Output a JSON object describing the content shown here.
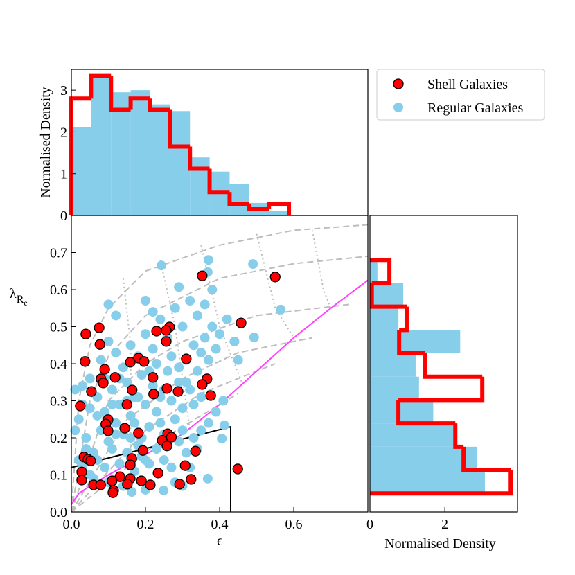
{
  "chart_data": [
    {
      "type": "scatter",
      "xlabel": "ϵ",
      "ylabel": "λ",
      "ylabel_sub": "R",
      "ylabel_subsub": "e",
      "xlim": [
        0,
        0.8
      ],
      "ylim": [
        0,
        0.8
      ],
      "xticks": [
        {
          "value": 0,
          "label": "0.0"
        },
        0.2,
        0.4,
        0.6
      ],
      "yticks": [
        {
          "value": 0,
          "label": "0.0"
        },
        0.1,
        0.2,
        0.3,
        0.4,
        0.5,
        0.6,
        0.7
      ],
      "legend": "upper right",
      "lines": [
        {
          "color": "#bdbdbd",
          "style": "dashed",
          "x": [
            0,
            0.02,
            0.05,
            0.1,
            0.2,
            0.4,
            0.6,
            0.8
          ],
          "values": [
            0,
            0.3,
            0.45,
            0.55,
            0.65,
            0.72,
            0.76,
            0.775
          ]
        },
        {
          "color": "#bdbdbd",
          "style": "dashed",
          "x": [
            0,
            0.05,
            0.1,
            0.2,
            0.4,
            0.6,
            0.8
          ],
          "values": [
            0,
            0.3,
            0.42,
            0.53,
            0.63,
            0.67,
            0.69
          ]
        },
        {
          "color": "#bdbdbd",
          "style": "dashed",
          "x": [
            0,
            0.1,
            0.2,
            0.3,
            0.5,
            0.75
          ],
          "values": [
            0,
            0.3,
            0.4,
            0.46,
            0.53,
            0.56
          ]
        },
        {
          "color": "#bdbdbd",
          "style": "dashed",
          "x": [
            0,
            0.15,
            0.3,
            0.45,
            0.65
          ],
          "values": [
            0,
            0.25,
            0.36,
            0.43,
            0.47
          ]
        },
        {
          "color": "#bdbdbd",
          "style": "dashed",
          "x": [
            0,
            0.2,
            0.35,
            0.55
          ],
          "values": [
            0,
            0.22,
            0.32,
            0.4
          ]
        },
        {
          "color": "#bdbdbd",
          "style": "dashed",
          "x": [
            0,
            0.25,
            0.45
          ],
          "values": [
            0,
            0.2,
            0.32
          ]
        },
        {
          "color": "#bdbdbd",
          "style": "dotted",
          "x": [
            0.14,
            0.16,
            0.16
          ],
          "values": [
            0.63,
            0.45,
            0.13
          ]
        },
        {
          "color": "#bdbdbd",
          "style": "dotted",
          "x": [
            0.24,
            0.28,
            0.32
          ],
          "values": [
            0.68,
            0.5,
            0.22
          ]
        },
        {
          "color": "#bdbdbd",
          "style": "dotted",
          "x": [
            0.35,
            0.4,
            0.46
          ],
          "values": [
            0.72,
            0.5,
            0.35
          ]
        },
        {
          "color": "#bdbdbd",
          "style": "dotted",
          "x": [
            0.5,
            0.55,
            0.6
          ],
          "values": [
            0.75,
            0.55,
            0.47
          ]
        },
        {
          "color": "#bdbdbd",
          "style": "dotted",
          "x": [
            0.65,
            0.68,
            0.7
          ],
          "values": [
            0.76,
            0.6,
            0.55
          ]
        },
        {
          "color": "#ff40ff",
          "style": "solid",
          "x": [
            0,
            0.02,
            0.05,
            0.1,
            0.2,
            0.3,
            0.4,
            0.5,
            0.6,
            0.7,
            0.8
          ],
          "values": [
            0.02,
            0.05,
            0.07,
            0.1,
            0.155,
            0.21,
            0.29,
            0.38,
            0.47,
            0.55,
            0.625
          ]
        },
        {
          "color": "#000000",
          "style": "solid",
          "x": [
            0,
            0.43,
            0.43
          ],
          "values": [
            0.12,
            0.23,
            0
          ]
        }
      ],
      "series": [
        {
          "name": "Regular Galaxies",
          "color": "#87ceeb",
          "x": [
            0.01,
            0.02,
            0.03,
            0.04,
            0.05,
            0.06,
            0.07,
            0.08,
            0.09,
            0.1,
            0.11,
            0.12,
            0.13,
            0.14,
            0.15,
            0.16,
            0.17,
            0.18,
            0.19,
            0.2,
            0.21,
            0.22,
            0.23,
            0.24,
            0.25,
            0.26,
            0.27,
            0.28,
            0.29,
            0.3,
            0.31,
            0.32,
            0.33,
            0.34,
            0.35,
            0.36,
            0.37,
            0.38,
            0.39,
            0.4,
            0.03,
            0.05,
            0.07,
            0.09,
            0.11,
            0.13,
            0.15,
            0.17,
            0.19,
            0.21,
            0.23,
            0.25,
            0.27,
            0.29,
            0.31,
            0.33,
            0.35,
            0.37,
            0.39,
            0.41,
            0.08,
            0.1,
            0.12,
            0.14,
            0.16,
            0.18,
            0.2,
            0.22,
            0.24,
            0.26,
            0.28,
            0.3,
            0.32,
            0.34,
            0.36,
            0.38,
            0.1,
            0.12,
            0.2,
            0.22,
            0.243,
            0.29,
            0.37,
            0.368,
            0.49,
            0.565,
            0.493,
            0.44,
            0.42,
            0.45,
            0.406,
            0.413,
            0.368,
            0.163,
            0.249,
            0.3,
            0.2,
            0.14,
            0.1,
            0.06,
            0.04,
            0.02,
            0.01,
            0.03,
            0.05,
            0.07,
            0.09,
            0.11,
            0.13,
            0.15,
            0.17,
            0.19,
            0.21,
            0.23,
            0.25,
            0.27,
            0.29,
            0.31,
            0.33,
            0.35,
            0.18,
            0.2,
            0.24,
            0.28,
            0.32,
            0.16,
            0.12,
            0.26,
            0.3,
            0.34
          ],
          "values": [
            0.33,
            0.25,
            0.34,
            0.2,
            0.28,
            0.16,
            0.31,
            0.22,
            0.27,
            0.19,
            0.33,
            0.24,
            0.29,
            0.21,
            0.35,
            0.26,
            0.31,
            0.18,
            0.37,
            0.29,
            0.23,
            0.34,
            0.27,
            0.31,
            0.21,
            0.38,
            0.3,
            0.25,
            0.35,
            0.28,
            0.41,
            0.33,
            0.45,
            0.38,
            0.43,
            0.47,
            0.41,
            0.5,
            0.44,
            0.48,
            0.12,
            0.1,
            0.14,
            0.12,
            0.17,
            0.13,
            0.16,
            0.11,
            0.15,
            0.13,
            0.17,
            0.14,
            0.12,
            0.19,
            0.16,
            0.2,
            0.22,
            0.24,
            0.27,
            0.3,
            0.41,
            0.46,
            0.43,
            0.39,
            0.45,
            0.42,
            0.48,
            0.44,
            0.52,
            0.47,
            0.55,
            0.5,
            0.57,
            0.53,
            0.56,
            0.6,
            0.56,
            0.53,
            0.57,
            0.54,
            0.665,
            0.607,
            0.68,
            0.647,
            0.669,
            0.546,
            0.471,
            0.46,
            0.52,
            0.41,
            0.198,
            0.234,
            0.09,
            0.054,
            0.058,
            0.07,
            0.06,
            0.07,
            0.08,
            0.09,
            0.17,
            0.14,
            0.22,
            0.29,
            0.36,
            0.26,
            0.36,
            0.29,
            0.36,
            0.3,
            0.24,
            0.2,
            0.38,
            0.4,
            0.33,
            0.42,
            0.39,
            0.35,
            0.29,
            0.31,
            0.31,
            0.14,
            0.24,
            0.08,
            0.12,
            0.2,
            0.21,
            0.18,
            0.22,
            0.17
          ]
        },
        {
          "name": "Shell Galaxies",
          "color": "#ff0000",
          "edgecolor": "#000000",
          "x": [
            0.353,
            0.55,
            0.458,
            0.039,
            0.075,
            0.077,
            0.265,
            0.256,
            0.23,
            0.256,
            0.037,
            0.09,
            0.31,
            0.181,
            0.196,
            0.159,
            0.08,
            0.086,
            0.118,
            0.22,
            0.366,
            0.353,
            0.054,
            0.164,
            0.258,
            0.288,
            0.222,
            0.376,
            0.024,
            0.15,
            0.099,
            0.093,
            0.099,
            0.144,
            0.181,
            0.26,
            0.27,
            0.245,
            0.258,
            0.193,
            0.163,
            0.335,
            0.034,
            0.045,
            0.052,
            0.159,
            0.307,
            0.028,
            0.028,
            0.131,
            0.11,
            0.159,
            0.189,
            0.234,
            0.323,
            0.449,
            0.06,
            0.079,
            0.114,
            0.112,
            0.151,
            0.213,
            0.292
          ],
          "values": [
            0.637,
            0.634,
            0.51,
            0.48,
            0.497,
            0.452,
            0.499,
            0.49,
            0.488,
            0.46,
            0.406,
            0.385,
            0.413,
            0.415,
            0.406,
            0.404,
            0.359,
            0.348,
            0.363,
            0.363,
            0.359,
            0.344,
            0.325,
            0.329,
            0.333,
            0.325,
            0.318,
            0.314,
            0.286,
            0.29,
            0.249,
            0.237,
            0.219,
            0.226,
            0.213,
            0.211,
            0.202,
            0.193,
            0.178,
            0.166,
            0.144,
            0.164,
            0.148,
            0.142,
            0.138,
            0.127,
            0.125,
            0.108,
            0.086,
            0.095,
            0.084,
            0.09,
            0.084,
            0.105,
            0.088,
            0.116,
            0.073,
            0.073,
            0.058,
            0.052,
            0.075,
            0.073,
            0.075
          ]
        }
      ]
    },
    {
      "type": "histogram",
      "orientation": "vertical",
      "ylabel": "Normalised Density",
      "xlim": [
        0,
        0.8
      ],
      "ylim": [
        0,
        3.5
      ],
      "yticks": [
        0,
        1,
        2,
        3
      ],
      "bins": [
        0,
        0.053,
        0.107,
        0.16,
        0.213,
        0.267,
        0.32,
        0.373,
        0.427,
        0.48,
        0.533,
        0.587
      ],
      "series": [
        {
          "color": "#87ceeb",
          "style": "filled",
          "values": [
            2.12,
            3.29,
            2.95,
            3.0,
            2.66,
            2.5,
            1.39,
            1.05,
            0.76,
            0.3,
            0.1
          ]
        },
        {
          "color": "#ff0000",
          "style": "step",
          "values": [
            2.8,
            3.34,
            2.53,
            2.8,
            2.53,
            1.65,
            1.12,
            0.56,
            0.28,
            0.15,
            0.28
          ]
        }
      ]
    },
    {
      "type": "histogram",
      "orientation": "horizontal",
      "xlabel": "Normalised Density",
      "xlim": [
        0,
        3.94
      ],
      "ylim": [
        0,
        0.8
      ],
      "xticks": [
        0,
        2
      ],
      "bins": [
        0.05,
        0.113,
        0.176,
        0.239,
        0.302,
        0.365,
        0.428,
        0.491,
        0.554,
        0.617,
        0.68
      ],
      "series": [
        {
          "color": "#87ceeb",
          "style": "filled",
          "values": [
            3.07,
            2.85,
            2.24,
            1.69,
            1.31,
            1.22,
            2.41,
            0.76,
            0.89,
            0.2
          ]
        },
        {
          "color": "#ff0000",
          "style": "step",
          "values": [
            3.76,
            2.5,
            2.28,
            0.76,
            3.0,
            1.48,
            0.78,
            0.98,
            0.05,
            0.52
          ]
        }
      ]
    }
  ]
}
